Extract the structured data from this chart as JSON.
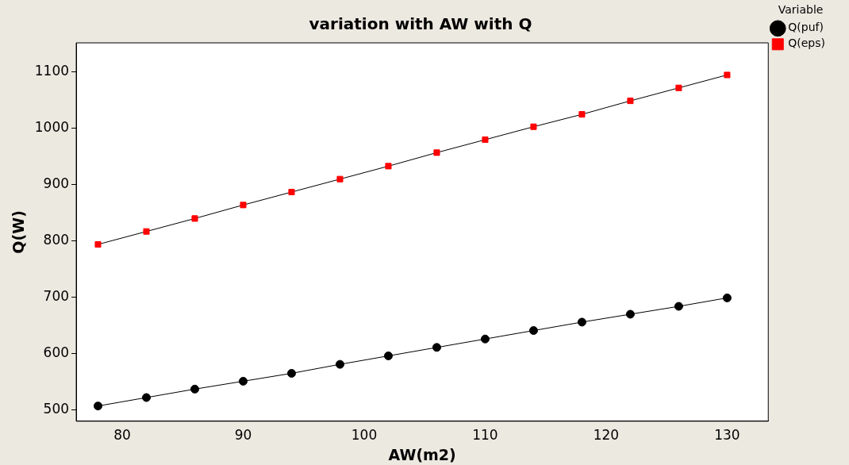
{
  "chart_data": {
    "type": "line",
    "title": "variation with AW with Q",
    "xlabel": "AW(m2)",
    "ylabel": "Q(W)",
    "legend_title": "Variable",
    "legend": "top right",
    "grid": false,
    "x": [
      78,
      82,
      86,
      90,
      94,
      98,
      102,
      106,
      110,
      114,
      118,
      122,
      126,
      130
    ],
    "xlim": [
      76.2,
      133.4
    ],
    "xticks": [
      80,
      90,
      100,
      110,
      120,
      130
    ],
    "ylim": [
      480,
      1152
    ],
    "yticks": [
      500,
      600,
      700,
      800,
      900,
      1000,
      1100
    ],
    "series": [
      {
        "name": "Q(puf)",
        "color": "#000000",
        "marker": "circle",
        "values": [
          507,
          522,
          537,
          551,
          565,
          581,
          596,
          611,
          626,
          641,
          656,
          670,
          684,
          699
        ]
      },
      {
        "name": "Q(eps)",
        "color": "#ff0000",
        "marker": "square",
        "values": [
          794,
          817,
          840,
          864,
          887,
          910,
          933,
          957,
          980,
          1003,
          1025,
          1049,
          1072,
          1095
        ]
      }
    ]
  }
}
